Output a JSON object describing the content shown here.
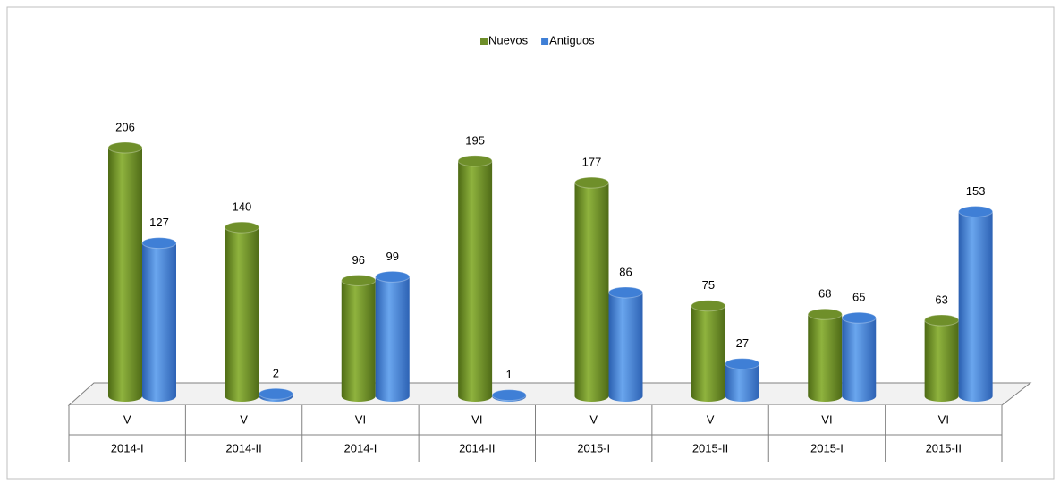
{
  "chart_data": {
    "type": "bar",
    "categories": [
      [
        "V",
        "2014-I"
      ],
      [
        "V",
        "2014-II"
      ],
      [
        "VI",
        "2014-I"
      ],
      [
        "VI",
        "2014-II"
      ],
      [
        "V",
        "2015-I"
      ],
      [
        "V",
        "2015-II"
      ],
      [
        "VI",
        "2015-I"
      ],
      [
        "VI",
        "2015-II"
      ]
    ],
    "series": [
      {
        "name": "Nuevos",
        "color": "#6f8f2a",
        "values": [
          206,
          140,
          96,
          195,
          177,
          75,
          68,
          63
        ]
      },
      {
        "name": "Antiguos",
        "color": "#3f7fd6",
        "values": [
          127,
          2,
          99,
          1,
          86,
          27,
          65,
          153
        ]
      }
    ],
    "legend": "top"
  }
}
